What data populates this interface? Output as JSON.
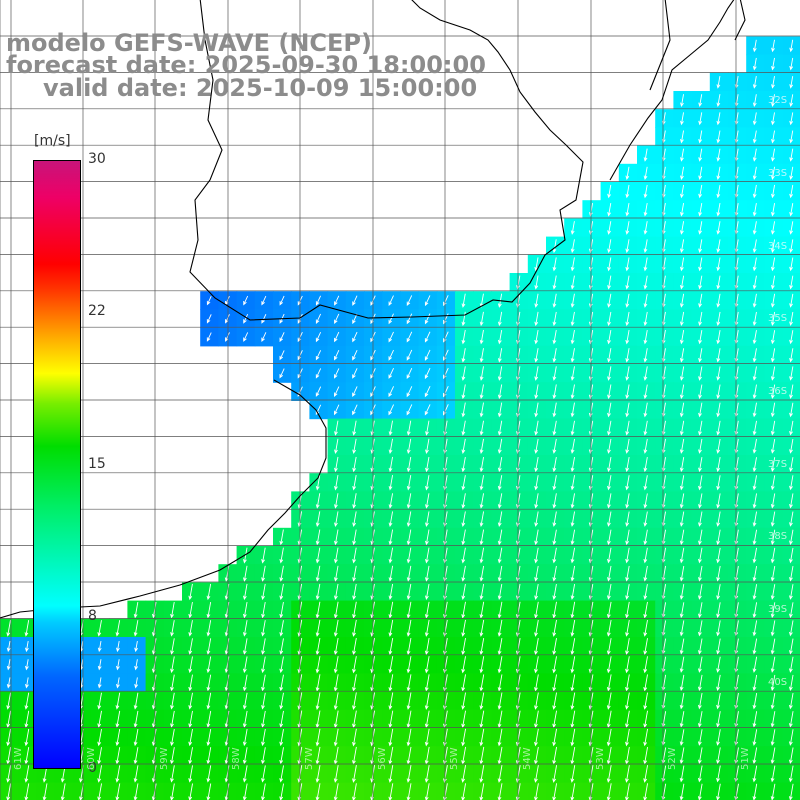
{
  "title": {
    "line1": "modelo GEFS-WAVE (NCEP)",
    "line2": "forecast date: 2025-09-30 18:00:00",
    "line3": "valid date: 2025-10-09 15:00:00"
  },
  "colorbar": {
    "unit": "[m/s]",
    "ticks": [
      "30",
      "22",
      "15",
      "8",
      "0"
    ]
  },
  "lat_labels": [
    "32S",
    "33S",
    "34S",
    "35S",
    "36S",
    "37S",
    "38S",
    "39S",
    "40S"
  ],
  "lon_labels": [
    "61W",
    "60W",
    "59W",
    "58W",
    "57W",
    "56W",
    "55W",
    "54W",
    "53W",
    "52W",
    "51W"
  ],
  "colors": {
    "land": "#ffffff",
    "coast": "#000000",
    "grid": "#555555",
    "arrow": "#ffffff",
    "title": "#8c8c8c"
  },
  "variable": "wind speed and direction"
}
